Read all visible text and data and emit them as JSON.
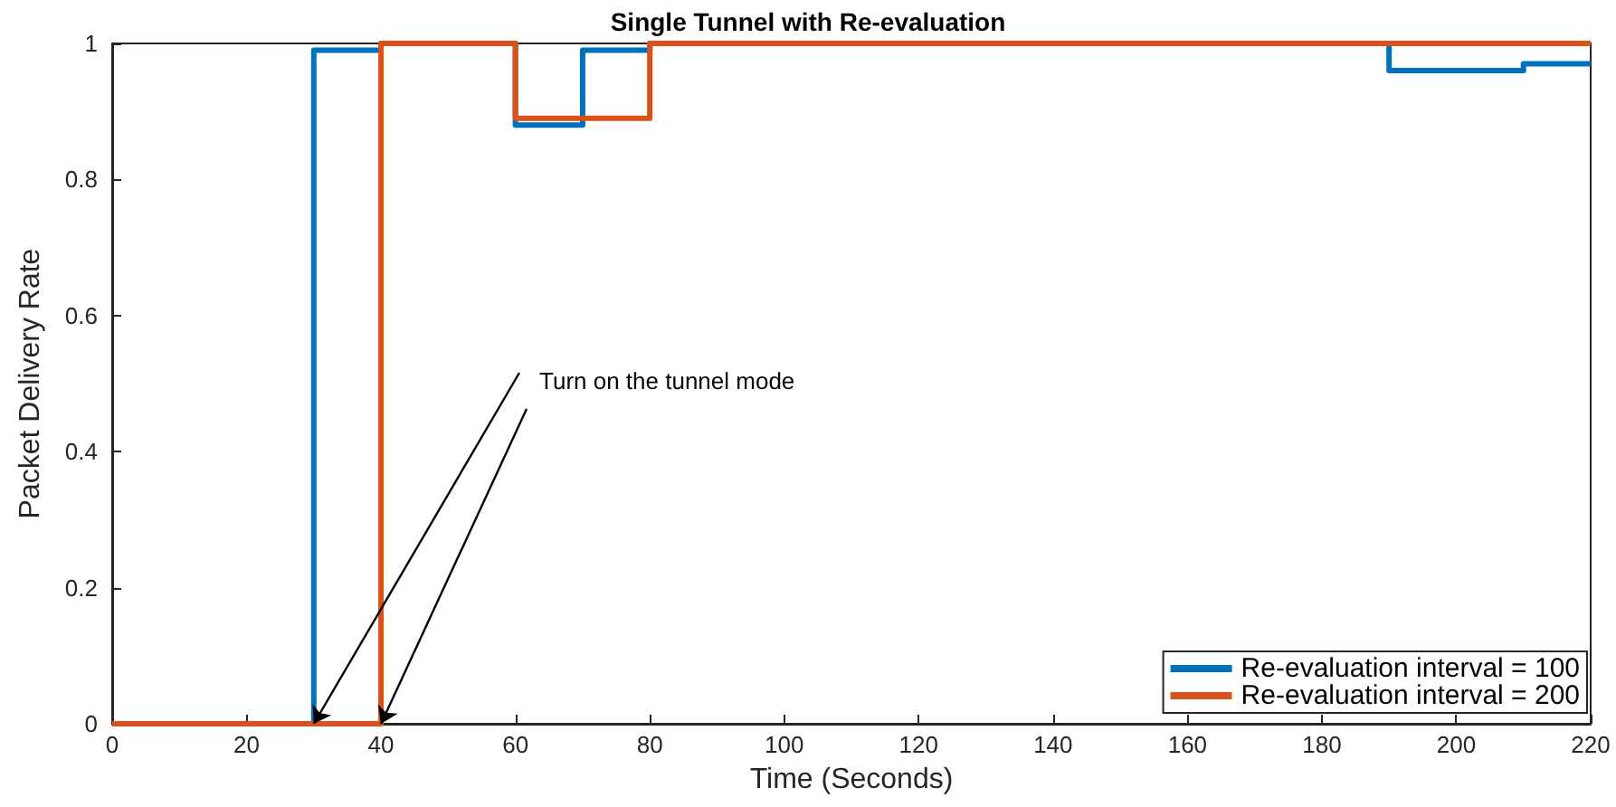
{
  "chart_data": {
    "type": "step",
    "title": "Single Tunnel with Re-evaluation",
    "xlabel": "Time (Seconds)",
    "ylabel": "Packet Delivery Rate",
    "xlim": [
      0,
      220
    ],
    "xticks": [
      0,
      20,
      40,
      60,
      80,
      100,
      120,
      140,
      160,
      180,
      200,
      220
    ],
    "ylim": [
      0,
      1
    ],
    "yticks": [
      0,
      0.2,
      0.4,
      0.6,
      0.8,
      1
    ],
    "series": [
      {
        "name": "Re-evaluation interval = 100",
        "color": "#0072bd",
        "x": [
          0,
          30,
          40,
          60,
          70,
          80,
          190,
          210,
          220
        ],
        "values": [
          0,
          0.99,
          1,
          0.88,
          0.99,
          1,
          0.96,
          0.97,
          0.97
        ]
      },
      {
        "name": "Re-evaluation interval = 200",
        "color": "#d95319",
        "x": [
          0,
          40,
          60,
          80,
          220
        ],
        "values": [
          0,
          1,
          0.89,
          1,
          1
        ]
      }
    ],
    "annotations": [
      {
        "text": "Turn on the tunnel mode",
        "x": 30,
        "y": 0
      }
    ],
    "grid": false,
    "legend": "bottom right",
    "marker": "none",
    "line_style": "solid"
  }
}
